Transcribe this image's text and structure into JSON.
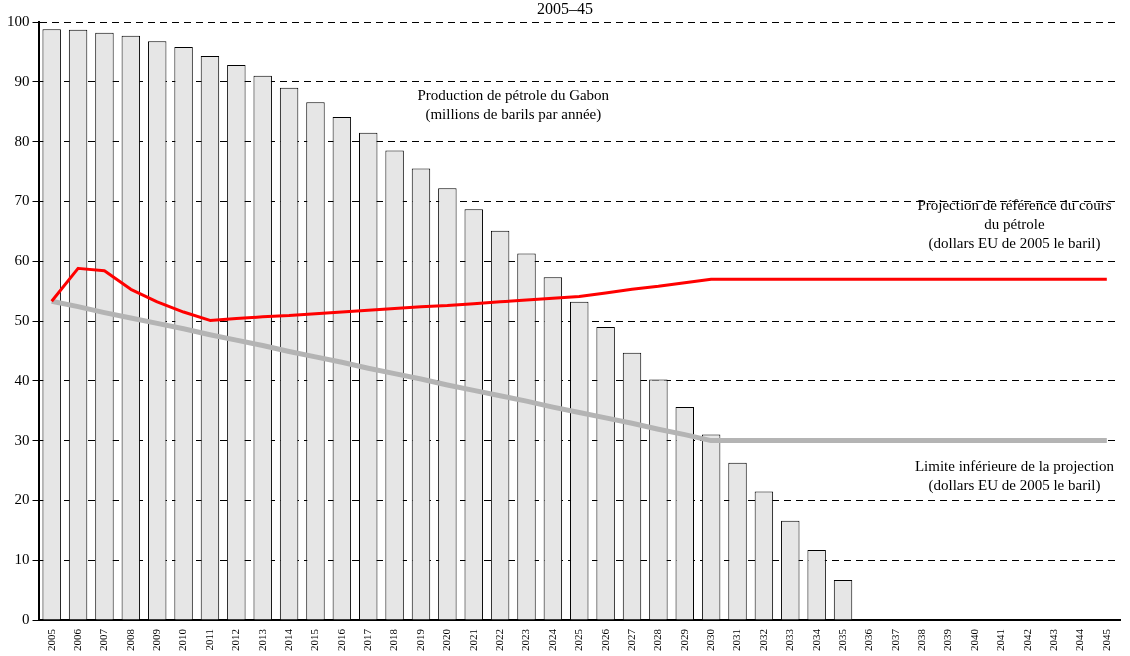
{
  "chart_data": {
    "type": "bar",
    "title": "2005–45",
    "categories": [
      "2005",
      "2006",
      "2007",
      "2008",
      "2009",
      "2010",
      "2011",
      "2012",
      "2013",
      "2014",
      "2015",
      "2016",
      "2017",
      "2018",
      "2019",
      "2020",
      "2021",
      "2022",
      "2023",
      "2024",
      "2025",
      "2026",
      "2027",
      "2028",
      "2029",
      "2030",
      "2031",
      "2032",
      "2033",
      "2034",
      "2035",
      "2036",
      "2037",
      "2038",
      "2039",
      "2040",
      "2041",
      "2042",
      "2043",
      "2044",
      "2045"
    ],
    "series": [
      {
        "name": "Production de pétrole du Gabon\n(millions de barils par année)",
        "color": "#e6e6e6",
        "values": [
          98.8,
          98.7,
          98.2,
          97.7,
          96.8,
          95.8,
          94.3,
          92.8,
          91.0,
          89.0,
          86.6,
          84.1,
          81.5,
          78.5,
          75.5,
          72.2,
          68.7,
          65.1,
          61.3,
          57.3,
          53.2,
          49.0,
          44.7,
          40.2,
          35.6,
          31.0,
          26.3,
          21.5,
          16.6,
          11.7,
          6.7,
          null,
          null,
          null,
          null,
          null,
          null,
          null,
          null,
          null,
          null
        ]
      },
      {
        "name": "Projection de référence du cours\ndu pétrole\n(dollars EU de 2005 le baril)",
        "type": "line",
        "color": "#ff0000",
        "values": [
          53.3,
          58.8,
          58.4,
          55.3,
          53.2,
          51.5,
          50.1,
          50.4,
          50.7,
          50.9,
          51.2,
          51.5,
          51.8,
          52.1,
          52.4,
          52.6,
          52.9,
          53.2,
          53.5,
          53.8,
          54.1,
          54.7,
          55.3,
          55.8,
          56.4,
          57.0,
          57.0,
          57.0,
          57.0,
          57.0,
          57.0,
          57.0,
          57.0,
          57.0,
          57.0,
          57.0,
          57.0,
          57.0,
          57.0,
          57.0,
          57.0
        ]
      },
      {
        "name": "Limite inférieure de la projection\n(dollars EU de 2005 le baril)",
        "type": "line",
        "color": "#b4b4b4",
        "values": [
          53.3,
          52.4,
          51.4,
          50.5,
          49.6,
          48.7,
          47.7,
          46.8,
          45.9,
          44.9,
          44.0,
          43.1,
          42.1,
          41.2,
          40.3,
          39.3,
          38.4,
          37.5,
          36.6,
          35.6,
          34.7,
          33.8,
          32.9,
          31.9,
          31.0,
          30.0,
          30.0,
          30.0,
          30.0,
          30.0,
          30.0,
          30.0,
          30.0,
          30.0,
          30.0,
          30.0,
          30.0,
          30.0,
          30.0,
          30.0,
          30.0
        ]
      }
    ],
    "ylim": [
      0,
      100
    ],
    "yticks": [
      0,
      10,
      20,
      30,
      40,
      50,
      60,
      70,
      80,
      90,
      100
    ],
    "grid": "y",
    "legend": false,
    "marker": "none"
  }
}
